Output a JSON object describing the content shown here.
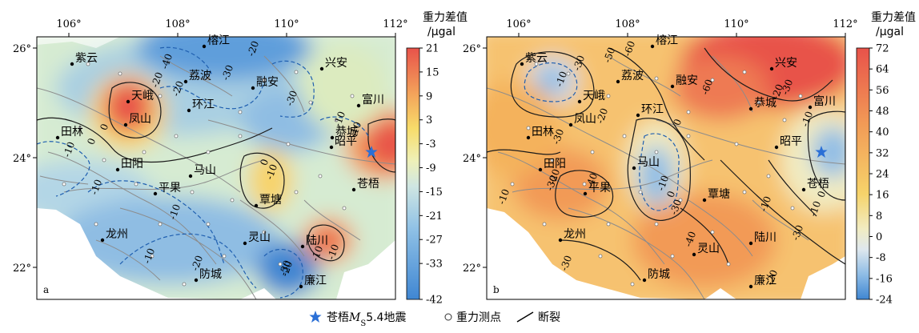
{
  "chart_data": [
    {
      "type": "heatmap",
      "panel_label": "a",
      "colorbar": {
        "title": "重力差值",
        "unit": "/μgal",
        "ticks": [
          21,
          15,
          9,
          3,
          -3,
          -9,
          -15,
          -21,
          -27,
          -33,
          -42
        ],
        "range": [
          -42,
          21
        ]
      },
      "x_ticks": [
        "106°",
        "108°",
        "110°",
        "112°"
      ],
      "y_ticks": [
        "26°",
        "24°",
        "22°"
      ],
      "cities": [
        "紫云",
        "榕江",
        "天峨",
        "荔波",
        "融安",
        "兴安",
        "环江",
        "富川",
        "凤山",
        "恭城",
        "田林",
        "昭平",
        "田阳",
        "马山",
        "苍梧",
        "平果",
        "覃塘",
        "龙州",
        "灵山",
        "陆川",
        "防城",
        "廉江"
      ],
      "contour_labels": [
        "-40",
        "-20",
        "-30",
        "-20",
        "-20",
        "0",
        "-30",
        "-10",
        "-10",
        "0",
        "-10",
        "-10",
        "0",
        "-10",
        "-20",
        "-10",
        "-10",
        "-20",
        "-30",
        "-10",
        "-10"
      ],
      "epicenter": "苍梧"
    },
    {
      "type": "heatmap",
      "panel_label": "b",
      "colorbar": {
        "title": "重力差值",
        "unit": "/μgal",
        "ticks": [
          72,
          64,
          56,
          48,
          40,
          32,
          24,
          16,
          8,
          0,
          -8,
          -16,
          -24
        ],
        "range": [
          -24,
          72
        ]
      },
      "x_ticks": [
        "106°",
        "108°",
        "110°",
        "112°"
      ],
      "y_ticks": [
        "26°",
        "24°",
        "22°"
      ],
      "cities": [
        "紫云",
        "榕江",
        "兴安",
        "荔波",
        "融安",
        "天峨",
        "恭城",
        "富川",
        "环江",
        "田林",
        "凤山",
        "昭平",
        "田阳",
        "马山",
        "苍梧",
        "平果",
        "覃塘",
        "龙州",
        "陆川",
        "灵山",
        "防城",
        "廉江"
      ],
      "contour_labels": [
        "-10",
        "-30",
        "-50",
        "-60",
        "-20",
        "-30",
        "-60",
        "-30",
        "-10",
        "-30",
        "-40",
        "-20",
        "-10",
        "-10",
        "0",
        "0",
        "-30",
        "-40",
        "-30",
        "-10",
        "-10",
        "-20",
        "-30",
        "0",
        "-20"
      ],
      "epicenter": "苍梧"
    }
  ],
  "legend": {
    "star_prefix": "苍梧",
    "star_m": "M",
    "star_s": "S",
    "star_mag": "5.4地震",
    "point": "重力测点",
    "fault": "断裂"
  },
  "colors": {
    "epicenter": "#2a6fd6",
    "contour": "#1a1a1a",
    "negative_contour": "#1f5fb0",
    "fault": "#8c8c8c"
  }
}
